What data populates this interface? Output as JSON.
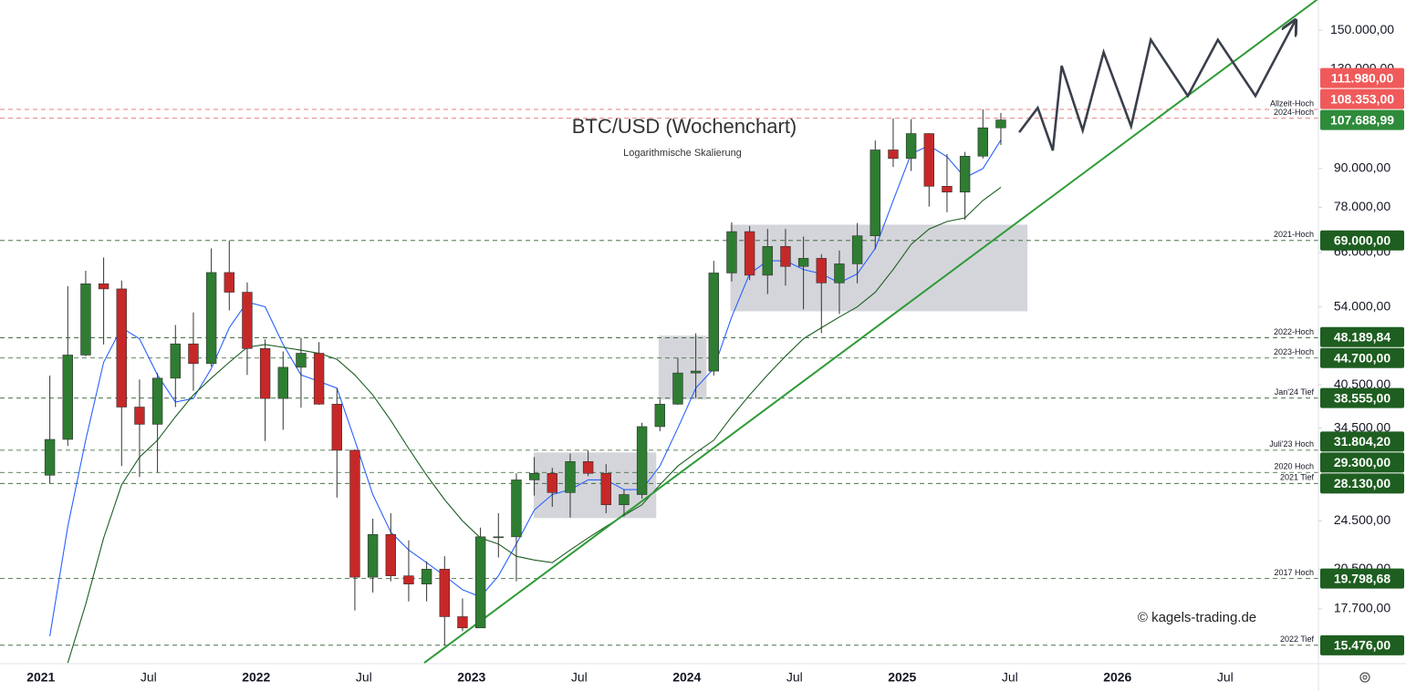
{
  "chart_data": {
    "type": "candlestick",
    "title": "BTC/USD (Wochenchart)",
    "subtitle": "Logarithmische Skalierung",
    "watermark": "© kagels-trading.de",
    "log_scale": true,
    "grid": false,
    "up_color": "#2e7d32",
    "down_color": "#c62828",
    "xlim": [
      "2020-10-23",
      "2026-12-07"
    ],
    "xticks": [
      {
        "value": "2021-01-01",
        "label": "2021"
      },
      {
        "value": "2021-07-01",
        "label": "Jul"
      },
      {
        "value": "2022-01-01",
        "label": "2022"
      },
      {
        "value": "2022-07-01",
        "label": "Jul"
      },
      {
        "value": "2023-01-01",
        "label": "2023"
      },
      {
        "value": "2023-07-01",
        "label": "Jul"
      },
      {
        "value": "2024-01-01",
        "label": "2024"
      },
      {
        "value": "2024-07-01",
        "label": "Jul"
      },
      {
        "value": "2025-01-01",
        "label": "2025"
      },
      {
        "value": "2025-07-01",
        "label": "Jul"
      },
      {
        "value": "2026-01-01",
        "label": "2026"
      },
      {
        "value": "2026-07-01",
        "label": "Jul"
      }
    ],
    "ylim": [
      14460,
      167700
    ],
    "yticks": [
      {
        "value": 150000,
        "label": "150.000,00"
      },
      {
        "value": 130000,
        "label": "130.000,00"
      },
      {
        "value": 90000,
        "label": "90.000,00"
      },
      {
        "value": 78000,
        "label": "78.000,00"
      },
      {
        "value": 66000,
        "label": "66.000,00"
      },
      {
        "value": 54000,
        "label": "54.000,00"
      },
      {
        "value": 40500,
        "label": "40.500,00"
      },
      {
        "value": 34500,
        "label": "34.500,00"
      },
      {
        "value": 24500,
        "label": "24.500,00"
      },
      {
        "value": 20500,
        "label": "20.500,00"
      },
      {
        "value": 17700,
        "label": "17.700,00"
      }
    ],
    "x": [
      "2021-01",
      "2021-02",
      "2021-03",
      "2021-04",
      "2021-05",
      "2021-06",
      "2021-07",
      "2021-08",
      "2021-09",
      "2021-10",
      "2021-11",
      "2021-12",
      "2022-01",
      "2022-02",
      "2022-03",
      "2022-04",
      "2022-05",
      "2022-06",
      "2022-07",
      "2022-08",
      "2022-09",
      "2022-10",
      "2022-11",
      "2022-12",
      "2023-01",
      "2023-02",
      "2023-03",
      "2023-04",
      "2023-05",
      "2023-06",
      "2023-07",
      "2023-08",
      "2023-09",
      "2023-10",
      "2023-11",
      "2023-12",
      "2024-01",
      "2024-02",
      "2024-03",
      "2024-04",
      "2024-05",
      "2024-06",
      "2024-07",
      "2024-08",
      "2024-09",
      "2024-10",
      "2024-11",
      "2024-12",
      "2025-01",
      "2025-02",
      "2025-03",
      "2025-04",
      "2025-05",
      "2025-06"
    ],
    "open": [
      29000,
      33100,
      45200,
      58800,
      57700,
      37300,
      35000,
      41500,
      47100,
      43800,
      61300,
      57000,
      46300,
      38500,
      43200,
      45500,
      37700,
      31800,
      19900,
      23300,
      20000,
      19400,
      20500,
      17200,
      16500,
      23100,
      23100,
      28500,
      29200,
      27200,
      30500,
      29200,
      26000,
      27000,
      34700,
      37700,
      42300,
      42600,
      61200,
      71300,
      60700,
      67500,
      62700,
      64600,
      59000,
      63300,
      70200,
      96400,
      93400,
      102400,
      84300,
      82500,
      94200,
      104600
    ],
    "high": [
      41900,
      58300,
      61700,
      64800,
      59500,
      41300,
      42300,
      50500,
      52900,
      67000,
      69000,
      59100,
      47900,
      45800,
      48189.84,
      47400,
      40000,
      31900,
      24700,
      25200,
      22800,
      21100,
      21500,
      18400,
      23900,
      25200,
      29200,
      31000,
      29800,
      31400,
      31804.2,
      30200,
      27500,
      35200,
      38400,
      44700,
      48969,
      64000,
      73800,
      72800,
      72000,
      72000,
      70000,
      65600,
      66500,
      73600,
      99800,
      108353,
      108000,
      102500,
      95000,
      95700,
      111980,
      110500
    ],
    "low": [
      28130,
      32300,
      45000,
      47000,
      30000,
      28800,
      29300,
      37300,
      39600,
      43300,
      53300,
      42000,
      32900,
      34300,
      37200,
      37600,
      26700,
      17600,
      18800,
      19600,
      18200,
      18200,
      15476,
      16300,
      16500,
      21400,
      19600,
      26900,
      25800,
      24800,
      28900,
      25200,
      24900,
      26600,
      34100,
      37600,
      38555,
      41900,
      59300,
      59600,
      56600,
      58400,
      53500,
      49000,
      52600,
      58900,
      66800,
      90500,
      89200,
      78200,
      76600,
      74500,
      93400,
      98200
    ],
    "close": [
      33100,
      45200,
      58800,
      57700,
      37300,
      35000,
      41500,
      47100,
      43800,
      61300,
      57000,
      46300,
      38500,
      43200,
      45500,
      37700,
      31800,
      19900,
      23300,
      20000,
      19400,
      20500,
      17200,
      16500,
      23100,
      23100,
      28500,
      29200,
      27200,
      30500,
      29200,
      26000,
      27000,
      34700,
      37700,
      42300,
      42600,
      61200,
      71300,
      60700,
      67500,
      62700,
      64600,
      59000,
      63300,
      70200,
      96400,
      93400,
      102400,
      84300,
      82500,
      94200,
      104600,
      107688.99
    ],
    "moving_averages": [
      {
        "color": "#2962ff",
        "values": [
          16000,
          24000,
          33000,
          44000,
          50000,
          48000,
          42000,
          38000,
          38500,
          43000,
          50000,
          55000,
          54000,
          47000,
          42000,
          41000,
          40000,
          33000,
          27000,
          23500,
          22000,
          21000,
          20000,
          19000,
          18500,
          20000,
          22500,
          25500,
          27000,
          27500,
          28500,
          28500,
          27500,
          27500,
          30000,
          34500,
          40000,
          43000,
          52000,
          61000,
          64000,
          64000,
          62000,
          61000,
          59000,
          61000,
          67000,
          80000,
          95000,
          98000,
          94000,
          87000,
          90000,
          100000
        ]
      },
      {
        "color": "#1b5e20",
        "values": [
          null,
          14500,
          18000,
          23000,
          28000,
          31000,
          33000,
          36000,
          39000,
          41500,
          44000,
          46500,
          47000,
          46500,
          46000,
          45500,
          44500,
          42000,
          39000,
          35500,
          32000,
          29000,
          26500,
          24500,
          23000,
          22500,
          21500,
          21200,
          21000,
          22000,
          23000,
          24000,
          25000,
          26000,
          28000,
          30000,
          31500,
          33000,
          36000,
          39000,
          42000,
          45000,
          48000,
          50000,
          52000,
          54000,
          57000,
          62000,
          68000,
          72000,
          74000,
          75000,
          80000,
          84000
        ]
      }
    ],
    "zones": [
      {
        "x": [
          "2023-04-15",
          "2023-11-10"
        ],
        "y": [
          24750,
          31540
        ]
      },
      {
        "x": [
          "2023-11-14",
          "2024-02-04"
        ],
        "y": [
          38350,
          48540
        ]
      },
      {
        "x": [
          "2024-03-14",
          "2025-07-31"
        ],
        "y": [
          53130,
          73150
        ]
      }
    ],
    "trendline": {
      "color": "#2e9a37",
      "x": [
        "2022-10-12",
        "2026-12-05"
      ],
      "y": [
        14500,
        168000
      ]
    },
    "projection": {
      "color": "#3a3f4b",
      "x": [
        "2025-07-17",
        "2025-08-18",
        "2025-09-13",
        "2025-09-28",
        "2025-11-03",
        "2025-12-08",
        "2026-01-24",
        "2026-02-27",
        "2026-04-29",
        "2026-06-19",
        "2026-08-22",
        "2026-10-29"
      ],
      "y": [
        102900,
        112600,
        96200,
        131500,
        103600,
        138300,
        105200,
        144800,
        117700,
        144800,
        117700,
        155600
      ]
    },
    "levels": [
      {
        "name": "Allzeit-Hoch",
        "value": 111980,
        "label": "111.980,00",
        "color": "#f05a5a"
      },
      {
        "name": "2024-Hoch",
        "value": 108353,
        "label": "108.353,00",
        "color": "#f05a5a"
      },
      {
        "value": 107688.99,
        "label": "107.688,99",
        "color": "#2e8b3a"
      },
      {
        "name": "2021-Hoch",
        "value": 69000,
        "label": "69.000,00",
        "color": "#1e5e20"
      },
      {
        "name": "2022-Hoch",
        "value": 48189.84,
        "label": "48.189,84",
        "color": "#1e5e20"
      },
      {
        "name": "2023-Hoch",
        "value": 44700,
        "label": "44.700,00",
        "color": "#1e5e20"
      },
      {
        "name": "Jan'24 Tief",
        "value": 38555,
        "label": "38.555,00",
        "color": "#1e5e20"
      },
      {
        "name": "Juli'23 Hoch",
        "value": 31804.2,
        "label": "31.804,20",
        "color": "#1e5e20"
      },
      {
        "name": "2020 Hoch",
        "value": 29300,
        "label": "29.300,00",
        "color": "#1e5e20"
      },
      {
        "name": "2021 Tief",
        "value": 28130,
        "label": "28.130,00",
        "color": "#1e5e20"
      },
      {
        "name": "2017 Hoch",
        "value": 19798.68,
        "label": "19.798,68",
        "color": "#1e5e20"
      },
      {
        "name": "2022 Tief",
        "value": 15476,
        "label": "15.476,00",
        "color": "#1e5e20"
      }
    ]
  }
}
